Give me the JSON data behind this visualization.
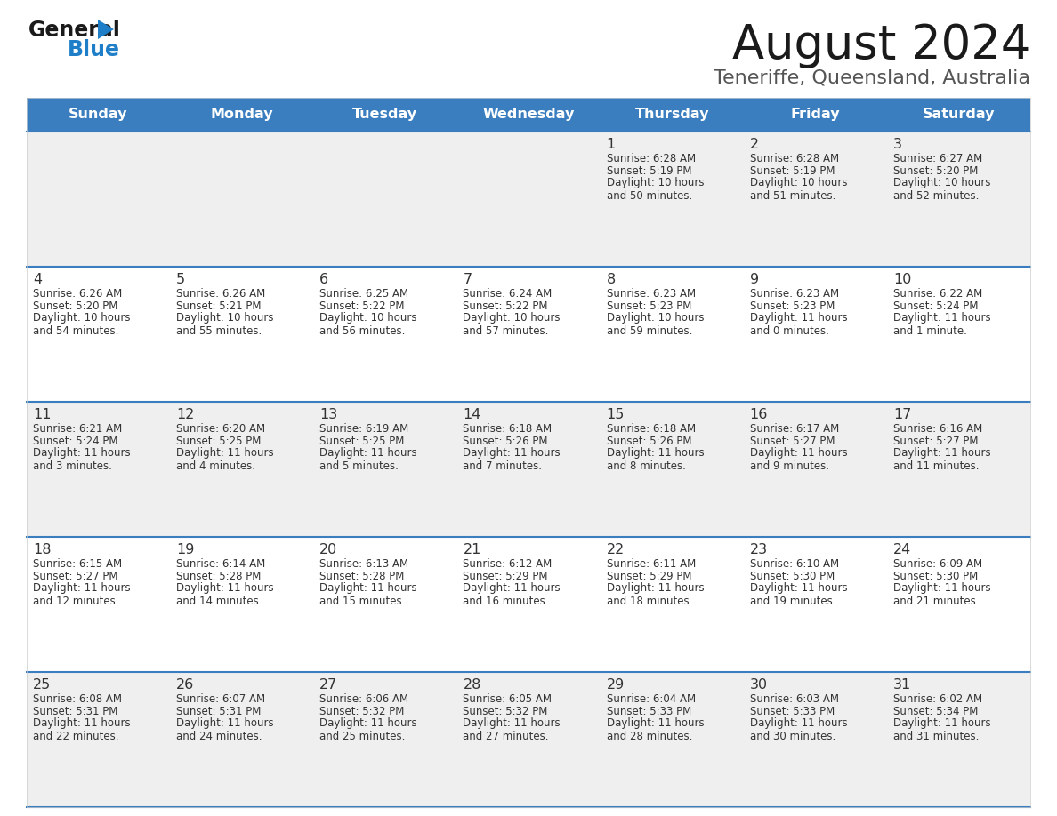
{
  "title": "August 2024",
  "subtitle": "Teneriffe, Queensland, Australia",
  "days_of_week": [
    "Sunday",
    "Monday",
    "Tuesday",
    "Wednesday",
    "Thursday",
    "Friday",
    "Saturday"
  ],
  "header_bg": "#3A7EBF",
  "header_text": "#FFFFFF",
  "row_bg_odd": "#EFEFEF",
  "row_bg_even": "#FFFFFF",
  "cell_text": "#333333",
  "divider_color": "#3A7EBF",
  "title_color": "#1A1A1A",
  "subtitle_color": "#555555",
  "calendar_data": [
    [
      {
        "day": "",
        "sunrise": "",
        "sunset": "",
        "daylight_line1": "",
        "daylight_line2": ""
      },
      {
        "day": "",
        "sunrise": "",
        "sunset": "",
        "daylight_line1": "",
        "daylight_line2": ""
      },
      {
        "day": "",
        "sunrise": "",
        "sunset": "",
        "daylight_line1": "",
        "daylight_line2": ""
      },
      {
        "day": "",
        "sunrise": "",
        "sunset": "",
        "daylight_line1": "",
        "daylight_line2": ""
      },
      {
        "day": "1",
        "sunrise": "Sunrise: 6:28 AM",
        "sunset": "Sunset: 5:19 PM",
        "daylight_line1": "Daylight: 10 hours",
        "daylight_line2": "and 50 minutes."
      },
      {
        "day": "2",
        "sunrise": "Sunrise: 6:28 AM",
        "sunset": "Sunset: 5:19 PM",
        "daylight_line1": "Daylight: 10 hours",
        "daylight_line2": "and 51 minutes."
      },
      {
        "day": "3",
        "sunrise": "Sunrise: 6:27 AM",
        "sunset": "Sunset: 5:20 PM",
        "daylight_line1": "Daylight: 10 hours",
        "daylight_line2": "and 52 minutes."
      }
    ],
    [
      {
        "day": "4",
        "sunrise": "Sunrise: 6:26 AM",
        "sunset": "Sunset: 5:20 PM",
        "daylight_line1": "Daylight: 10 hours",
        "daylight_line2": "and 54 minutes."
      },
      {
        "day": "5",
        "sunrise": "Sunrise: 6:26 AM",
        "sunset": "Sunset: 5:21 PM",
        "daylight_line1": "Daylight: 10 hours",
        "daylight_line2": "and 55 minutes."
      },
      {
        "day": "6",
        "sunrise": "Sunrise: 6:25 AM",
        "sunset": "Sunset: 5:22 PM",
        "daylight_line1": "Daylight: 10 hours",
        "daylight_line2": "and 56 minutes."
      },
      {
        "day": "7",
        "sunrise": "Sunrise: 6:24 AM",
        "sunset": "Sunset: 5:22 PM",
        "daylight_line1": "Daylight: 10 hours",
        "daylight_line2": "and 57 minutes."
      },
      {
        "day": "8",
        "sunrise": "Sunrise: 6:23 AM",
        "sunset": "Sunset: 5:23 PM",
        "daylight_line1": "Daylight: 10 hours",
        "daylight_line2": "and 59 minutes."
      },
      {
        "day": "9",
        "sunrise": "Sunrise: 6:23 AM",
        "sunset": "Sunset: 5:23 PM",
        "daylight_line1": "Daylight: 11 hours",
        "daylight_line2": "and 0 minutes."
      },
      {
        "day": "10",
        "sunrise": "Sunrise: 6:22 AM",
        "sunset": "Sunset: 5:24 PM",
        "daylight_line1": "Daylight: 11 hours",
        "daylight_line2": "and 1 minute."
      }
    ],
    [
      {
        "day": "11",
        "sunrise": "Sunrise: 6:21 AM",
        "sunset": "Sunset: 5:24 PM",
        "daylight_line1": "Daylight: 11 hours",
        "daylight_line2": "and 3 minutes."
      },
      {
        "day": "12",
        "sunrise": "Sunrise: 6:20 AM",
        "sunset": "Sunset: 5:25 PM",
        "daylight_line1": "Daylight: 11 hours",
        "daylight_line2": "and 4 minutes."
      },
      {
        "day": "13",
        "sunrise": "Sunrise: 6:19 AM",
        "sunset": "Sunset: 5:25 PM",
        "daylight_line1": "Daylight: 11 hours",
        "daylight_line2": "and 5 minutes."
      },
      {
        "day": "14",
        "sunrise": "Sunrise: 6:18 AM",
        "sunset": "Sunset: 5:26 PM",
        "daylight_line1": "Daylight: 11 hours",
        "daylight_line2": "and 7 minutes."
      },
      {
        "day": "15",
        "sunrise": "Sunrise: 6:18 AM",
        "sunset": "Sunset: 5:26 PM",
        "daylight_line1": "Daylight: 11 hours",
        "daylight_line2": "and 8 minutes."
      },
      {
        "day": "16",
        "sunrise": "Sunrise: 6:17 AM",
        "sunset": "Sunset: 5:27 PM",
        "daylight_line1": "Daylight: 11 hours",
        "daylight_line2": "and 9 minutes."
      },
      {
        "day": "17",
        "sunrise": "Sunrise: 6:16 AM",
        "sunset": "Sunset: 5:27 PM",
        "daylight_line1": "Daylight: 11 hours",
        "daylight_line2": "and 11 minutes."
      }
    ],
    [
      {
        "day": "18",
        "sunrise": "Sunrise: 6:15 AM",
        "sunset": "Sunset: 5:27 PM",
        "daylight_line1": "Daylight: 11 hours",
        "daylight_line2": "and 12 minutes."
      },
      {
        "day": "19",
        "sunrise": "Sunrise: 6:14 AM",
        "sunset": "Sunset: 5:28 PM",
        "daylight_line1": "Daylight: 11 hours",
        "daylight_line2": "and 14 minutes."
      },
      {
        "day": "20",
        "sunrise": "Sunrise: 6:13 AM",
        "sunset": "Sunset: 5:28 PM",
        "daylight_line1": "Daylight: 11 hours",
        "daylight_line2": "and 15 minutes."
      },
      {
        "day": "21",
        "sunrise": "Sunrise: 6:12 AM",
        "sunset": "Sunset: 5:29 PM",
        "daylight_line1": "Daylight: 11 hours",
        "daylight_line2": "and 16 minutes."
      },
      {
        "day": "22",
        "sunrise": "Sunrise: 6:11 AM",
        "sunset": "Sunset: 5:29 PM",
        "daylight_line1": "Daylight: 11 hours",
        "daylight_line2": "and 18 minutes."
      },
      {
        "day": "23",
        "sunrise": "Sunrise: 6:10 AM",
        "sunset": "Sunset: 5:30 PM",
        "daylight_line1": "Daylight: 11 hours",
        "daylight_line2": "and 19 minutes."
      },
      {
        "day": "24",
        "sunrise": "Sunrise: 6:09 AM",
        "sunset": "Sunset: 5:30 PM",
        "daylight_line1": "Daylight: 11 hours",
        "daylight_line2": "and 21 minutes."
      }
    ],
    [
      {
        "day": "25",
        "sunrise": "Sunrise: 6:08 AM",
        "sunset": "Sunset: 5:31 PM",
        "daylight_line1": "Daylight: 11 hours",
        "daylight_line2": "and 22 minutes."
      },
      {
        "day": "26",
        "sunrise": "Sunrise: 6:07 AM",
        "sunset": "Sunset: 5:31 PM",
        "daylight_line1": "Daylight: 11 hours",
        "daylight_line2": "and 24 minutes."
      },
      {
        "day": "27",
        "sunrise": "Sunrise: 6:06 AM",
        "sunset": "Sunset: 5:32 PM",
        "daylight_line1": "Daylight: 11 hours",
        "daylight_line2": "and 25 minutes."
      },
      {
        "day": "28",
        "sunrise": "Sunrise: 6:05 AM",
        "sunset": "Sunset: 5:32 PM",
        "daylight_line1": "Daylight: 11 hours",
        "daylight_line2": "and 27 minutes."
      },
      {
        "day": "29",
        "sunrise": "Sunrise: 6:04 AM",
        "sunset": "Sunset: 5:33 PM",
        "daylight_line1": "Daylight: 11 hours",
        "daylight_line2": "and 28 minutes."
      },
      {
        "day": "30",
        "sunrise": "Sunrise: 6:03 AM",
        "sunset": "Sunset: 5:33 PM",
        "daylight_line1": "Daylight: 11 hours",
        "daylight_line2": "and 30 minutes."
      },
      {
        "day": "31",
        "sunrise": "Sunrise: 6:02 AM",
        "sunset": "Sunset: 5:34 PM",
        "daylight_line1": "Daylight: 11 hours",
        "daylight_line2": "and 31 minutes."
      }
    ]
  ]
}
